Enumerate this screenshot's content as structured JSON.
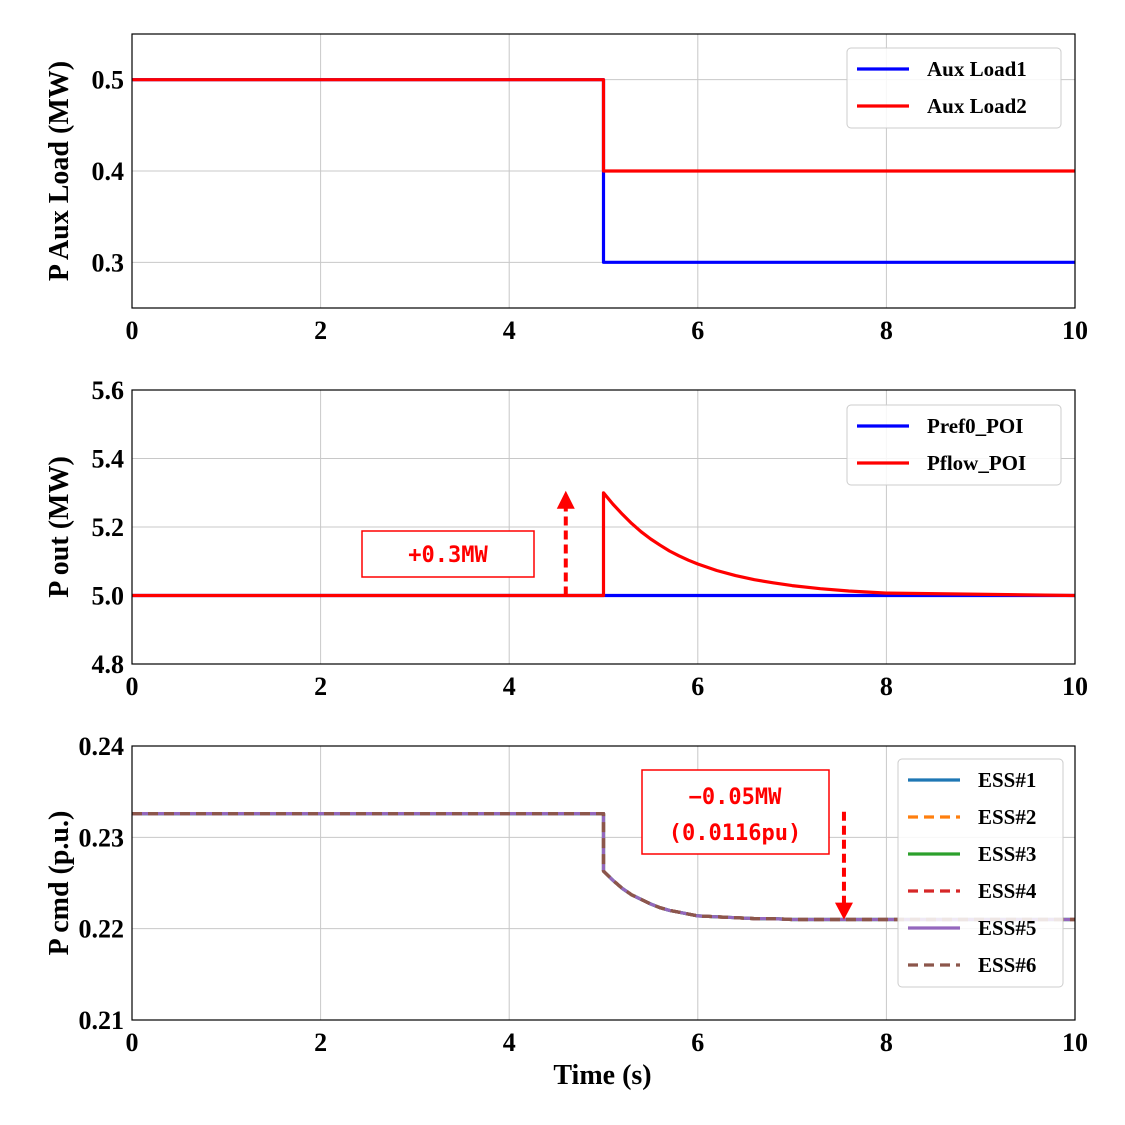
{
  "chart_data": [
    {
      "type": "line",
      "ylabel": "P Aux Load (MW)",
      "xlabel": "",
      "xlim": [
        0,
        10
      ],
      "ylim": [
        0.25,
        0.55
      ],
      "xticks": [
        "0",
        "2",
        "4",
        "6",
        "8",
        "10"
      ],
      "yticks": [
        "0.3",
        "0.4",
        "0.5"
      ],
      "grid": true,
      "legend_position": "top-right",
      "series": [
        {
          "name": "Aux Load1",
          "color": "#0000ff",
          "style": "solid",
          "x": [
            0,
            5.0,
            5.0,
            10
          ],
          "y": [
            0.5,
            0.5,
            0.3,
            0.3
          ]
        },
        {
          "name": "Aux Load2",
          "color": "#ff0000",
          "style": "solid",
          "x": [
            0,
            5.0,
            5.0,
            10
          ],
          "y": [
            0.5,
            0.5,
            0.4,
            0.4
          ]
        }
      ],
      "annotations": []
    },
    {
      "type": "line",
      "ylabel": "P out (MW)",
      "xlabel": "",
      "xlim": [
        0,
        10
      ],
      "ylim": [
        4.8,
        5.6
      ],
      "xticks": [
        "0",
        "2",
        "4",
        "6",
        "8",
        "10"
      ],
      "yticks": [
        "4.8",
        "5.0",
        "5.2",
        "5.4",
        "5.6"
      ],
      "grid": true,
      "legend_position": "top-right",
      "series": [
        {
          "name": "Pref0_POI",
          "color": "#0000ff",
          "style": "solid",
          "x": [
            0,
            10
          ],
          "y": [
            5.0,
            5.0
          ]
        },
        {
          "name": "Pflow_POI",
          "color": "#ff0000",
          "style": "solid",
          "x": [
            0,
            5.0,
            5.0,
            5.1,
            5.2,
            5.3,
            5.4,
            5.5,
            5.6,
            5.7,
            5.8,
            5.9,
            6.0,
            6.2,
            6.4,
            6.6,
            6.8,
            7.0,
            7.3,
            7.6,
            8.0,
            10
          ],
          "y": [
            5.0,
            5.0,
            5.3,
            5.267,
            5.237,
            5.21,
            5.186,
            5.165,
            5.147,
            5.13,
            5.116,
            5.103,
            5.092,
            5.073,
            5.058,
            5.046,
            5.037,
            5.029,
            5.02,
            5.013,
            5.007,
            5.0
          ]
        }
      ],
      "annotations": [
        {
          "text": "+0.3MW",
          "arrow": "up",
          "x": 4.6,
          "y_from": 5.0,
          "y_to": 5.3
        }
      ]
    },
    {
      "type": "line",
      "ylabel": "P cmd (p.u.)",
      "xlabel": "Time (s)",
      "xlim": [
        0,
        10
      ],
      "ylim": [
        0.21,
        0.24
      ],
      "xticks": [
        "0",
        "2",
        "4",
        "6",
        "8",
        "10"
      ],
      "yticks": [
        "0.21",
        "0.22",
        "0.23",
        "0.24"
      ],
      "grid": true,
      "legend_position": "right",
      "series": [
        {
          "name": "ESS#1",
          "color": "#1f77b4",
          "style": "solid"
        },
        {
          "name": "ESS#2",
          "color": "#ff7f0e",
          "style": "dashed"
        },
        {
          "name": "ESS#3",
          "color": "#2ca02c",
          "style": "solid"
        },
        {
          "name": "ESS#4",
          "color": "#d62728",
          "style": "dashed"
        },
        {
          "name": "ESS#5",
          "color": "#9467bd",
          "style": "solid"
        },
        {
          "name": "ESS#6",
          "color": "#8c564b",
          "style": "dashed"
        }
      ],
      "shared_curve": {
        "x": [
          0,
          5.0,
          5.0,
          5.1,
          5.2,
          5.3,
          5.4,
          5.5,
          5.6,
          5.7,
          5.8,
          5.9,
          6.0,
          6.2,
          6.4,
          6.6,
          6.8,
          7.0,
          7.5,
          8.0,
          10
        ],
        "y": [
          0.2326,
          0.2326,
          0.2263,
          0.2253,
          0.2244,
          0.2237,
          0.2232,
          0.2227,
          0.2223,
          0.222,
          0.2218,
          0.2216,
          0.2214,
          0.2213,
          0.2212,
          0.2211,
          0.2211,
          0.221,
          0.221,
          0.221,
          0.221
        ]
      },
      "annotations": [
        {
          "text_line1": "−0.05MW",
          "text_line2": "(0.0116pu)",
          "arrow": "down",
          "x": 7.55,
          "y_from": 0.2328,
          "y_to": 0.2211
        }
      ]
    }
  ]
}
